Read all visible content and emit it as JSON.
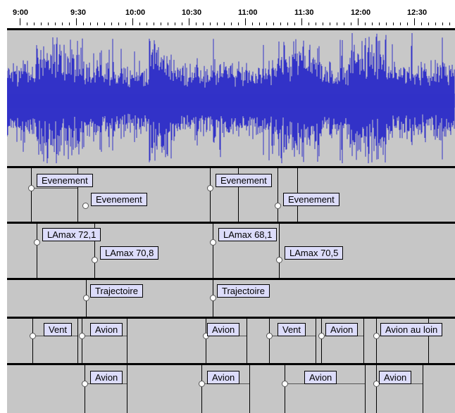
{
  "ruler": {
    "labels": [
      "9:00",
      "9:30",
      "10:00",
      "10:30",
      "11:00",
      "11:30",
      "12:00",
      "12:30"
    ]
  },
  "colors": {
    "waveform": "#3232c8",
    "track_background": "#c6c6c6",
    "label_fill": "#dcdcfa",
    "separator": "#000000"
  },
  "tracks": [
    {
      "name": "evenement-track",
      "labels": [
        "Evenement",
        "Evenement",
        "Evenement",
        "Evenement"
      ]
    },
    {
      "name": "lamax-track",
      "labels": [
        "LAmax 72,1",
        "LAmax 70,8",
        "LAmax 68,1",
        "LAmax 70,5"
      ]
    },
    {
      "name": "trajectoire-track",
      "labels": [
        "Trajectoire",
        "Trajectoire"
      ]
    },
    {
      "name": "source-track",
      "labels": [
        "Vent",
        "Avion",
        "Avion",
        "Vent",
        "Avion",
        "Avion au loin"
      ]
    },
    {
      "name": "avion-track",
      "labels": [
        "Avion",
        "Avion",
        "Avion",
        "Avion"
      ]
    }
  ]
}
